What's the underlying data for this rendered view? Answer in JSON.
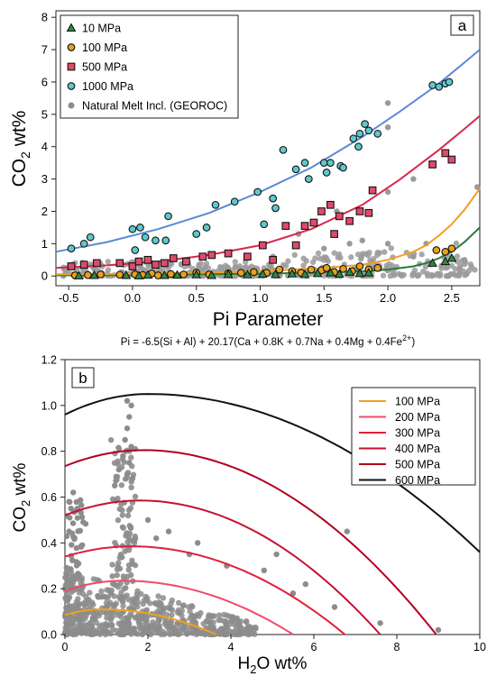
{
  "chart_data": [
    {
      "panel_label": "a",
      "type": "scatter",
      "xlabel": "Pi Parameter",
      "ylabel_main": "CO",
      "ylabel_sub": "2",
      "ylabel_tail": " wt%",
      "formula_main": "Pi = -6.5(Si + Al) + 20.17(Ca + 0.8K + 0.7Na + 0.4Mg + 0.4Fe",
      "formula_sup": "2+",
      "formula_tail": ")",
      "xlim": [
        -0.6,
        2.72
      ],
      "ylim": [
        -0.3,
        8.2
      ],
      "xticks": [
        "-0.5",
        "0.0",
        "0.5",
        "1.0",
        "1.5",
        "2.0",
        "2.5"
      ],
      "xtick_values": [
        -0.5,
        0,
        0.5,
        1,
        1.5,
        2,
        2.5
      ],
      "yticks": [
        "0",
        "1",
        "2",
        "3",
        "4",
        "5",
        "6",
        "7",
        "8"
      ],
      "ytick_values": [
        0,
        1,
        2,
        3,
        4,
        5,
        6,
        7,
        8
      ],
      "legend_position": "top-left",
      "legend": [
        {
          "label": "10 MPa",
          "marker": "triangle",
          "color": "#2a8a45"
        },
        {
          "label": "100 MPa",
          "marker": "circle",
          "color": "#e8a020"
        },
        {
          "label": "500 MPa",
          "marker": "square",
          "color": "#e04a6a"
        },
        {
          "label": "1000 MPa",
          "marker": "circle",
          "color": "#5ec8cc"
        },
        {
          "label": "Natural Melt Incl. (GEOROC)",
          "marker": "dot",
          "color": "#8c8c8c"
        }
      ],
      "curves": [
        {
          "name": "10 MPa",
          "color": "#2a7a3a",
          "x": [
            -0.6,
            0,
            0.5,
            1,
            1.5,
            1.8,
            2.0,
            2.2,
            2.3,
            2.4,
            2.5,
            2.6,
            2.72
          ],
          "y": [
            0.02,
            0.03,
            0.05,
            0.07,
            0.11,
            0.15,
            0.2,
            0.3,
            0.4,
            0.55,
            0.75,
            1.05,
            1.5
          ]
        },
        {
          "name": "100 MPa",
          "color": "#f0a020",
          "x": [
            -0.6,
            0,
            0.5,
            1,
            1.5,
            1.8,
            2.0,
            2.2,
            2.3,
            2.4,
            2.5,
            2.6,
            2.72
          ],
          "y": [
            0.05,
            0.07,
            0.1,
            0.15,
            0.25,
            0.35,
            0.5,
            0.75,
            0.95,
            1.25,
            1.6,
            2.05,
            2.7
          ]
        },
        {
          "name": "500 MPa",
          "color": "#d8284a",
          "x": [
            -0.6,
            -0.2,
            0.2,
            0.6,
            1.0,
            1.4,
            1.8,
            2.1,
            2.4,
            2.6,
            2.72
          ],
          "y": [
            0.25,
            0.33,
            0.45,
            0.65,
            0.95,
            1.45,
            2.2,
            3.0,
            3.9,
            4.55,
            4.95
          ]
        },
        {
          "name": "1000 MPa",
          "color": "#5b8ad6",
          "x": [
            -0.6,
            -0.2,
            0.2,
            0.6,
            1.0,
            1.4,
            1.8,
            2.1,
            2.4,
            2.6,
            2.72
          ],
          "y": [
            0.75,
            1.05,
            1.45,
            1.95,
            2.6,
            3.35,
            4.3,
            5.1,
            5.95,
            6.6,
            7.0
          ]
        }
      ],
      "series": [
        {
          "name": "1000 MPa",
          "marker": "circle",
          "color": "#5ec8cc",
          "x": [
            -0.48,
            -0.38,
            -0.33,
            0.0,
            0.02,
            0.06,
            0.1,
            0.18,
            0.26,
            0.28,
            0.5,
            0.58,
            0.65,
            0.8,
            0.98,
            1.03,
            1.1,
            1.12,
            1.18,
            1.28,
            1.35,
            1.38,
            1.5,
            1.52,
            1.55,
            1.63,
            1.65,
            1.73,
            1.77,
            1.78,
            1.82,
            1.85,
            1.92,
            2.35,
            2.4,
            2.45,
            2.48
          ],
          "y": [
            0.85,
            1.0,
            1.2,
            1.45,
            0.8,
            1.5,
            1.2,
            1.1,
            1.1,
            1.85,
            1.3,
            1.5,
            2.2,
            2.3,
            2.6,
            1.6,
            2.4,
            2.1,
            3.9,
            3.3,
            3.5,
            3.0,
            3.5,
            3.2,
            3.5,
            3.4,
            3.35,
            4.25,
            4.0,
            4.4,
            4.7,
            4.5,
            4.4,
            5.9,
            5.85,
            5.95,
            6.0
          ]
        },
        {
          "name": "500 MPa",
          "marker": "square",
          "color": "#e04a6a",
          "x": [
            -0.48,
            -0.38,
            -0.28,
            -0.1,
            0.0,
            0.05,
            0.12,
            0.18,
            0.25,
            0.32,
            0.42,
            0.55,
            0.62,
            0.75,
            0.9,
            1.02,
            1.1,
            1.2,
            1.28,
            1.35,
            1.42,
            1.48,
            1.55,
            1.58,
            1.62,
            1.7,
            1.78,
            1.85,
            1.88,
            2.35,
            2.45,
            2.5
          ],
          "y": [
            0.3,
            0.35,
            0.4,
            0.4,
            0.3,
            0.45,
            0.5,
            0.35,
            0.4,
            0.55,
            0.45,
            0.6,
            0.65,
            0.7,
            0.6,
            0.95,
            0.5,
            1.55,
            0.95,
            1.55,
            1.65,
            2.0,
            2.2,
            1.3,
            1.85,
            1.7,
            2.0,
            1.95,
            2.65,
            3.45,
            3.8,
            3.6
          ]
        },
        {
          "name": "100 MPa",
          "marker": "circle",
          "color": "#e8a020",
          "x": [
            -0.45,
            -0.35,
            -0.25,
            -0.1,
            0.02,
            0.08,
            0.15,
            0.2,
            0.3,
            0.4,
            0.5,
            0.6,
            0.75,
            0.85,
            0.95,
            1.05,
            1.15,
            1.25,
            1.32,
            1.4,
            1.48,
            1.52,
            1.58,
            1.65,
            1.72,
            1.78,
            1.85,
            1.92,
            2.38,
            2.45,
            2.5
          ],
          "y": [
            0.02,
            0.03,
            0.05,
            0.04,
            0.05,
            0.03,
            0.08,
            0.02,
            0.06,
            0.05,
            0.1,
            0.05,
            0.08,
            0.1,
            0.12,
            0.1,
            0.2,
            0.15,
            0.1,
            0.2,
            0.18,
            0.25,
            0.12,
            0.22,
            0.15,
            0.3,
            0.2,
            0.25,
            0.8,
            0.75,
            0.85
          ]
        },
        {
          "name": "10 MPa",
          "marker": "triangle",
          "color": "#2a8a45",
          "x": [
            -0.42,
            -0.3,
            -0.05,
            0.05,
            0.12,
            0.25,
            0.35,
            0.5,
            0.62,
            0.75,
            0.9,
            1.02,
            1.12,
            1.25,
            1.35,
            1.45,
            1.55,
            1.62,
            1.7,
            1.78,
            1.85,
            2.35,
            2.45,
            2.5
          ],
          "y": [
            0.01,
            0.02,
            0.02,
            0.01,
            0.03,
            0.02,
            0.03,
            0.04,
            0.02,
            0.05,
            0.04,
            0.06,
            0.05,
            0.07,
            0.05,
            0.08,
            0.1,
            0.06,
            0.12,
            0.08,
            0.1,
            0.4,
            0.45,
            0.55
          ]
        }
      ],
      "scatter_cloud": {
        "name": "Natural Melt Incl. (GEOROC)",
        "color": "#8c8c8c",
        "x_range": [
          -0.55,
          2.7
        ],
        "y_range": [
          0,
          0.8
        ],
        "outliers": [
          [
            2.0,
            4.6
          ],
          [
            2.0,
            5.35
          ],
          [
            2.2,
            3.0
          ],
          [
            2.0,
            2.6
          ],
          [
            1.6,
            2.0
          ],
          [
            2.7,
            2.75
          ],
          [
            1.3,
            1.3
          ],
          [
            2.3,
            1.0
          ],
          [
            1.8,
            1.1
          ],
          [
            2.0,
            1.0
          ],
          [
            1.5,
            0.85
          ],
          [
            1.7,
            1.0
          ],
          [
            2.2,
            0.6
          ],
          [
            1.1,
            0.6
          ],
          [
            2.6,
            0.5
          ]
        ]
      }
    },
    {
      "panel_label": "b",
      "type": "scatter",
      "xlabel_main": "H",
      "xlabel_sub": "2",
      "xlabel_tail": "O wt%",
      "ylabel_main": "CO",
      "ylabel_sub": "2",
      "ylabel_tail": " wt%",
      "xlim": [
        0,
        10
      ],
      "ylim": [
        0,
        1.2
      ],
      "xticks": [
        "0",
        "2",
        "4",
        "6",
        "8",
        "10"
      ],
      "xtick_values": [
        0,
        2,
        4,
        6,
        8,
        10
      ],
      "yticks": [
        "0.0",
        "0.2",
        "0.4",
        "0.6",
        "0.8",
        "1.0",
        "1.2"
      ],
      "ytick_values": [
        0,
        0.2,
        0.4,
        0.6,
        0.8,
        1.0,
        1.2
      ],
      "legend_position": "top-right",
      "legend": [
        {
          "label": "100 MPa",
          "color": "#f0a020"
        },
        {
          "label": "200 MPa",
          "color": "#f04a6a"
        },
        {
          "label": "300 MPa",
          "color": "#e0203a"
        },
        {
          "label": "400 MPa",
          "color": "#c8102e"
        },
        {
          "label": "500 MPa",
          "color": "#b00020"
        },
        {
          "label": "600 MPa",
          "color": "#111111"
        }
      ],
      "curves": [
        {
          "name": "100 MPa",
          "color": "#f0a020",
          "y0": 0.085,
          "peak_x": 0.9,
          "peak_y": 0.11,
          "x_end": 3.65
        },
        {
          "name": "200 MPa",
          "color": "#f04a6a",
          "y0": 0.19,
          "peak_x": 1.4,
          "peak_y": 0.235,
          "x_end": 5.5
        },
        {
          "name": "300 MPa",
          "color": "#e0203a",
          "y0": 0.34,
          "peak_x": 1.6,
          "peak_y": 0.385,
          "x_end": 6.75
        },
        {
          "name": "400 MPa",
          "color": "#c8102e",
          "y0": 0.52,
          "peak_x": 1.8,
          "peak_y": 0.585,
          "x_end": 7.6
        },
        {
          "name": "500 MPa",
          "color": "#b00020",
          "y0": 0.735,
          "peak_x": 1.9,
          "peak_y": 0.805,
          "x_end": 8.95
        },
        {
          "name": "600 MPa",
          "color": "#111111",
          "y0": 0.96,
          "peak_x": 2.0,
          "peak_y": 1.05,
          "x_end": 10.0,
          "y_at_end": 0.36
        }
      ],
      "scatter_cloud": {
        "name": "Natural Melt Incl.",
        "color": "#8c8c8c",
        "outliers": [
          [
            1.5,
            1.02
          ],
          [
            1.6,
            1.0
          ],
          [
            1.55,
            0.95
          ],
          [
            1.5,
            0.9
          ],
          [
            1.45,
            0.85
          ],
          [
            1.6,
            0.82
          ],
          [
            1.4,
            0.78
          ],
          [
            1.55,
            0.75
          ],
          [
            1.3,
            0.72
          ],
          [
            1.5,
            0.7
          ],
          [
            1.2,
            0.65
          ],
          [
            0.2,
            0.62
          ],
          [
            0.1,
            0.58
          ],
          [
            0.3,
            0.55
          ],
          [
            0.1,
            0.45
          ],
          [
            3.2,
            0.4
          ],
          [
            3.0,
            0.35
          ],
          [
            3.9,
            0.3
          ],
          [
            4.8,
            0.28
          ],
          [
            5.1,
            0.35
          ],
          [
            5.8,
            0.22
          ],
          [
            5.5,
            0.18
          ],
          [
            6.8,
            0.45
          ],
          [
            6.5,
            0.12
          ],
          [
            7.6,
            0.05
          ],
          [
            9.0,
            0.02
          ],
          [
            2.2,
            0.42
          ],
          [
            2.5,
            0.45
          ],
          [
            2.0,
            0.5
          ]
        ]
      }
    }
  ]
}
